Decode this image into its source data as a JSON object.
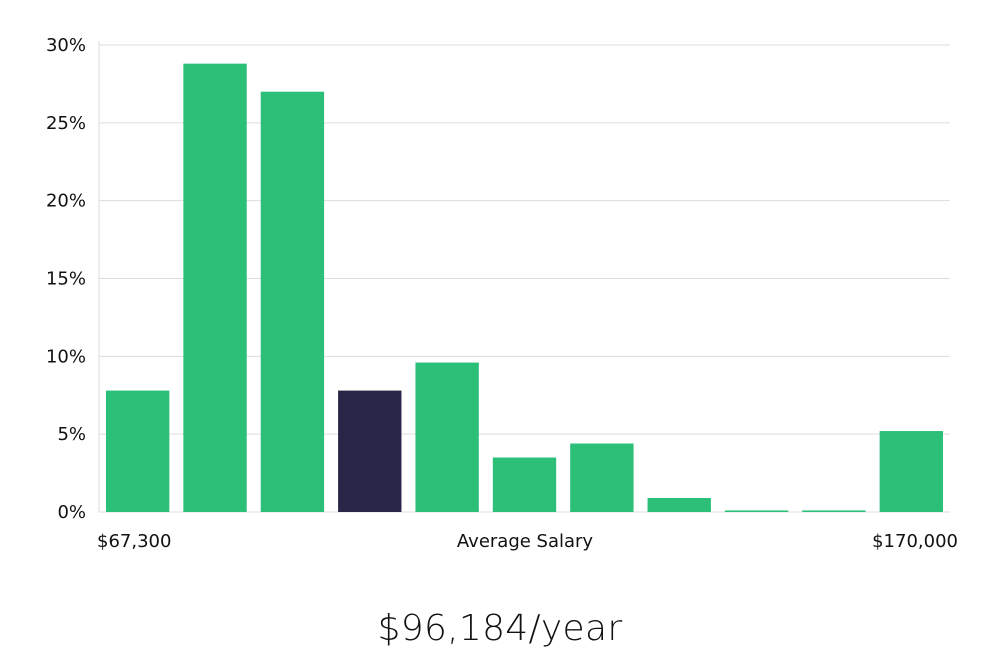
{
  "chart_data": {
    "type": "bar",
    "title": "",
    "xlabel": "Average Salary",
    "ylabel": "",
    "x_min_label": "$67,300",
    "x_max_label": "$170,000",
    "ylim": [
      0,
      30
    ],
    "yticks": [
      0,
      5,
      10,
      15,
      20,
      25,
      30
    ],
    "ytick_labels": [
      "0%",
      "5%",
      "10%",
      "15%",
      "20%",
      "25%",
      "30%"
    ],
    "grid": true,
    "values": [
      7.8,
      28.8,
      27.0,
      7.8,
      9.6,
      3.5,
      4.4,
      0.9,
      0.1,
      0.1,
      5.2
    ],
    "highlight_index": 3,
    "bar_color": "#2bbf78",
    "highlight_color": "#272647",
    "grid_color": "#dddddd"
  },
  "headline": {
    "salary_text": "$96,184/year"
  }
}
